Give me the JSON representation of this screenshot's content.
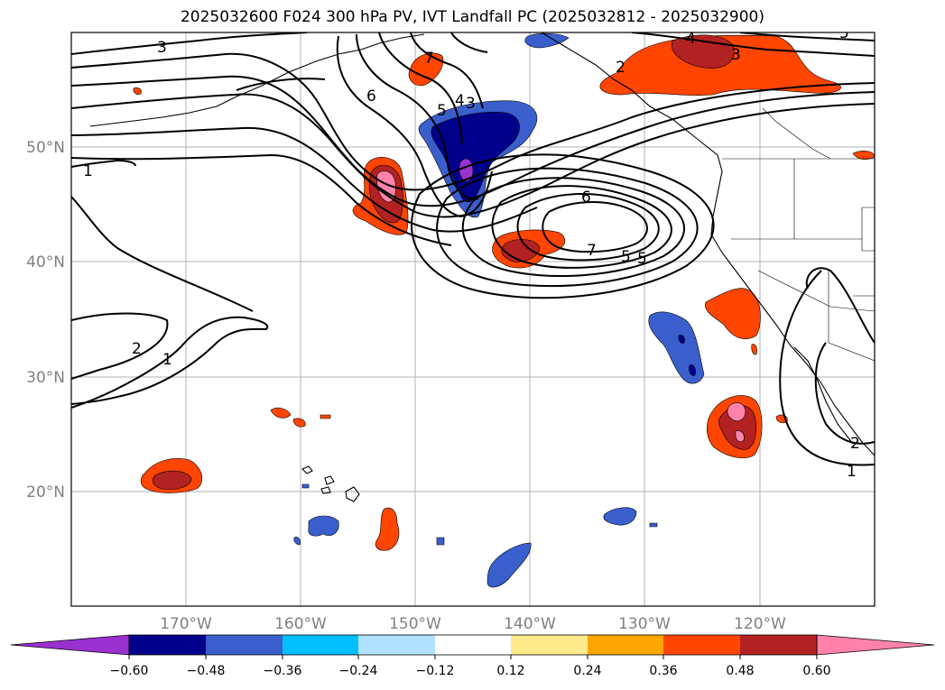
{
  "title": "2025032600 F024 300 hPa PV, IVT Landfall PC (2025032812 - 2025032900)",
  "lat_labels": [
    "50°N",
    "40°N",
    "30°N",
    "20°N"
  ],
  "lon_labels": [
    "170°W",
    "160°W",
    "150°W",
    "140°W",
    "130°W",
    "120°W"
  ],
  "colorbar": {
    "ticks": [
      "−0.60",
      "−0.48",
      "−0.36",
      "−0.24",
      "−0.12",
      "0.12",
      "0.24",
      "0.36",
      "0.48",
      "0.60"
    ],
    "colors": [
      "#9b30d0",
      "#00008b",
      "#3a5fcd",
      "#00bfff",
      "#b0e2ff",
      "#ffffff",
      "#ffeb8c",
      "#ffa500",
      "#ff4500",
      "#b22222",
      "#ff82ab",
      "#ff82ab"
    ]
  },
  "contour_labels": [
    "3",
    "4",
    "5",
    "6",
    "7",
    "1",
    "2",
    "1",
    "2",
    "1",
    "3",
    "4",
    "5",
    "6",
    "7",
    "5",
    "4",
    "3",
    "2",
    "4",
    "3",
    "5"
  ],
  "map": {
    "projection": "PlateCarree",
    "extent_lon": [
      -180,
      -110
    ],
    "extent_lat": [
      10,
      60
    ],
    "gridlines": true,
    "pv_contour_units": "PVU"
  }
}
